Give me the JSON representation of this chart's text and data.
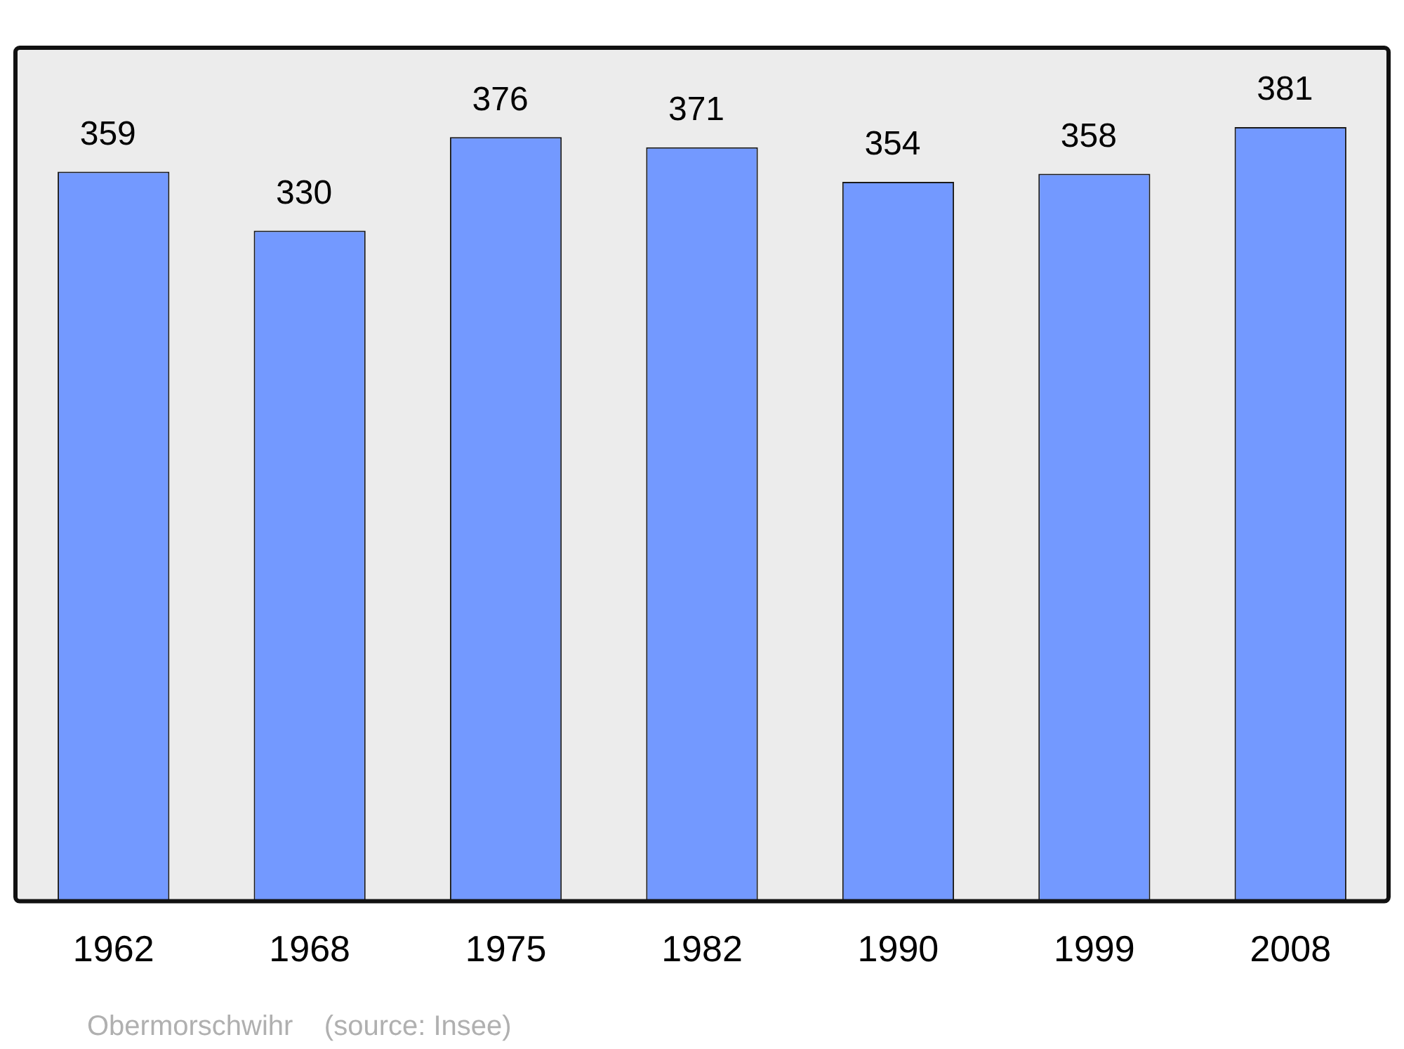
{
  "chart_data": {
    "type": "bar",
    "categories": [
      "1962",
      "1968",
      "1975",
      "1982",
      "1990",
      "1999",
      "2008"
    ],
    "values": [
      359,
      330,
      376,
      371,
      354,
      358,
      381
    ],
    "color": "#7399ff",
    "ylim": [
      0,
      420
    ],
    "data_labels": true,
    "grid": false,
    "legend": false,
    "annotations": [
      "Obermorschwihr    (source: Insee)"
    ]
  }
}
